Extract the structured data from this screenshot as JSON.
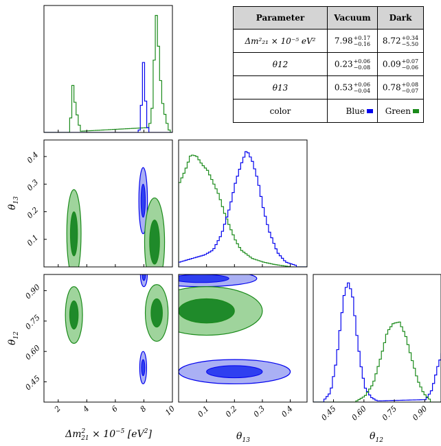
{
  "chart_data": [
    {
      "type": "corner",
      "parameters": [
        "Δm²₂₁ × 10⁻⁵ [eV²]",
        "θ13",
        "θ12"
      ],
      "series": [
        {
          "name": "Vacuum",
          "color_name": "Blue",
          "color": "#0000ee"
        },
        {
          "name": "Dark",
          "color_name": "Green",
          "color": "#1a8a1a"
        }
      ],
      "axes": {
        "dm21": {
          "label": "Δm²₂₁ × 10⁻⁵ [eV²]",
          "range": [
            1,
            10
          ],
          "ticks": [
            "2",
            "4",
            "6",
            "8",
            "10"
          ],
          "tick_values": [
            2,
            4,
            6,
            8,
            10
          ]
        },
        "theta13": {
          "label": "θ13",
          "range": [
            0,
            0.46
          ],
          "ticks": [
            "0.1",
            "0.2",
            "0.3",
            "0.4"
          ],
          "tick_values": [
            0.1,
            0.2,
            0.3,
            0.4
          ]
        },
        "theta12": {
          "label": "θ12",
          "range": [
            0.35,
            0.98
          ],
          "ticks": [
            "0.45",
            "0.60",
            "0.75",
            "0.90"
          ],
          "tick_values": [
            0.45,
            0.6,
            0.75,
            0.9
          ]
        }
      },
      "marginals": {
        "dm21": {
          "Vacuum": {
            "x": [
              7.6,
              7.7,
              7.8,
              7.9,
              8.0,
              8.1,
              8.2,
              8.3
            ],
            "y": [
              0.02,
              0.1,
              0.35,
              0.58,
              0.4,
              0.12,
              0.04,
              0.0
            ]
          },
          "Dark": {
            "x": [
              2.7,
              2.8,
              2.9,
              3.0,
              3.1,
              3.2,
              3.3,
              3.4,
              3.5,
              8.2,
              8.3,
              8.4,
              8.5,
              8.6,
              8.7,
              8.8,
              8.9,
              9.0,
              9.1,
              9.2,
              9.3,
              9.4,
              9.5,
              9.6,
              9.7
            ],
            "y": [
              0.02,
              0.12,
              0.35,
              0.43,
              0.25,
              0.17,
              0.12,
              0.06,
              0.01,
              0.04,
              0.06,
              0.09,
              0.2,
              0.42,
              0.78,
              0.97,
              0.85,
              0.58,
              0.43,
              0.28,
              0.2,
              0.15,
              0.1,
              0.05,
              0.02
            ]
          }
        },
        "theta13": {
          "Vacuum": {
            "x": [
              0.0,
              0.03,
              0.06,
              0.09,
              0.12,
              0.15,
              0.18,
              0.2,
              0.22,
              0.24,
              0.26,
              0.28,
              0.3,
              0.32,
              0.35,
              0.38,
              0.42
            ],
            "y": [
              0.04,
              0.06,
              0.08,
              0.1,
              0.14,
              0.27,
              0.5,
              0.7,
              0.85,
              0.97,
              0.88,
              0.72,
              0.48,
              0.3,
              0.12,
              0.04,
              0.01
            ]
          },
          "Dark": {
            "x": [
              0.0,
              0.02,
              0.04,
              0.06,
              0.08,
              0.1,
              0.12,
              0.14,
              0.16,
              0.18,
              0.2,
              0.22,
              0.26,
              0.3,
              0.34,
              0.4
            ],
            "y": [
              0.7,
              0.8,
              0.93,
              0.92,
              0.85,
              0.8,
              0.7,
              0.6,
              0.45,
              0.33,
              0.22,
              0.14,
              0.07,
              0.04,
              0.02,
              0.0
            ]
          }
        },
        "theta12": {
          "Vacuum": {
            "x": [
              0.4,
              0.43,
              0.46,
              0.48,
              0.5,
              0.52,
              0.54,
              0.56,
              0.58,
              0.6,
              0.63,
              0.66,
              0.9,
              0.93,
              0.96,
              0.98
            ],
            "y": [
              0.02,
              0.08,
              0.35,
              0.65,
              0.92,
              0.99,
              0.86,
              0.55,
              0.3,
              0.12,
              0.04,
              0.01,
              0.02,
              0.1,
              0.3,
              0.4
            ]
          },
          "Dark": {
            "x": [
              0.56,
              0.6,
              0.64,
              0.68,
              0.71,
              0.74,
              0.77,
              0.8,
              0.83,
              0.86,
              0.89,
              0.92
            ],
            "y": [
              0.01,
              0.05,
              0.15,
              0.38,
              0.58,
              0.65,
              0.66,
              0.55,
              0.36,
              0.18,
              0.07,
              0.02
            ]
          }
        }
      },
      "contours_2d": [
        {
          "panel": "theta13_vs_dm21",
          "series": "Vacuum",
          "center": [
            7.95,
            0.24
          ],
          "sigma": [
            0.15,
            0.06
          ]
        },
        {
          "panel": "theta13_vs_dm21",
          "series": "Dark",
          "center": [
            3.1,
            0.12
          ],
          "sigma": [
            0.25,
            0.08
          ]
        },
        {
          "panel": "theta13_vs_dm21",
          "series": "Dark",
          "center": [
            8.75,
            0.09
          ],
          "sigma": [
            0.35,
            0.08
          ]
        },
        {
          "panel": "theta12_vs_dm21",
          "series": "Vacuum",
          "center": [
            7.95,
            0.52
          ],
          "sigma": [
            0.12,
            0.04
          ]
        },
        {
          "panel": "theta12_vs_dm21",
          "series": "Vacuum",
          "center": [
            8.0,
            0.98
          ],
          "sigma": [
            0.12,
            0.03
          ]
        },
        {
          "panel": "theta12_vs_dm21",
          "series": "Dark",
          "center": [
            3.1,
            0.78
          ],
          "sigma": [
            0.3,
            0.07
          ]
        },
        {
          "panel": "theta12_vs_dm21",
          "series": "Dark",
          "center": [
            8.9,
            0.79
          ],
          "sigma": [
            0.4,
            0.07
          ]
        },
        {
          "panel": "theta12_vs_theta13",
          "series": "Vacuum",
          "center": [
            0.2,
            0.5
          ],
          "sigma": [
            0.1,
            0.03
          ]
        },
        {
          "panel": "theta12_vs_theta13",
          "series": "Vacuum",
          "center": [
            0.08,
            0.96
          ],
          "sigma": [
            0.1,
            0.02
          ]
        },
        {
          "panel": "theta12_vs_theta13",
          "series": "Dark",
          "center": [
            0.1,
            0.8
          ],
          "sigma": [
            0.1,
            0.06
          ]
        }
      ]
    },
    {
      "type": "table",
      "headers": [
        "Parameter",
        "Vacuum",
        "Dark"
      ],
      "rows": [
        {
          "param": "Δm²₂₁ × 10⁻⁵ eV²",
          "vacuum": {
            "value": "7.98",
            "plus": "+0.17",
            "minus": "−0.16"
          },
          "dark": {
            "value": "8.72",
            "plus": "+0.34",
            "minus": "−5.50"
          }
        },
        {
          "param": "θ12",
          "vacuum": {
            "value": "0.23",
            "plus": "+0.06",
            "minus": "−0.08"
          },
          "dark": {
            "value": "0.09",
            "plus": "+0.07",
            "minus": "−0.06"
          }
        },
        {
          "param": "θ13",
          "vacuum": {
            "value": "0.53",
            "plus": "+0.06",
            "minus": "−0.04"
          },
          "dark": {
            "value": "0.78",
            "plus": "+0.08",
            "minus": "−0.07"
          }
        },
        {
          "param": "color",
          "vacuum": {
            "text": "Blue"
          },
          "dark": {
            "text": "Green"
          }
        }
      ]
    }
  ]
}
